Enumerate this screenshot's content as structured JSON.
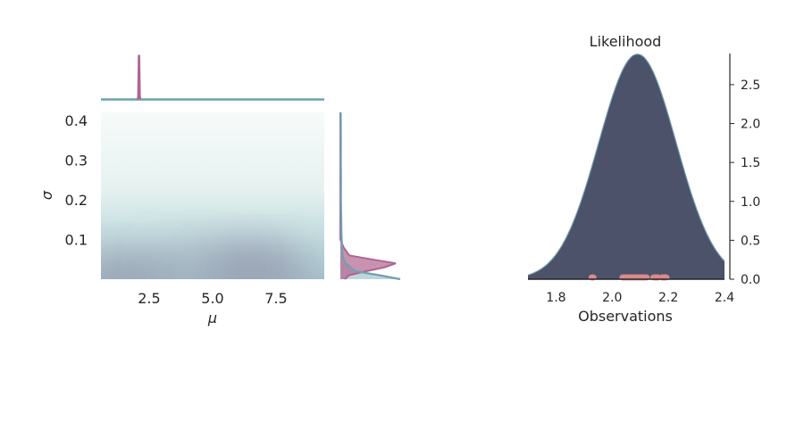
{
  "colors": {
    "background": "#ffffff",
    "text": "#262626",
    "prior_color": "#b0648f",
    "posterior_color": "#6ea2b0",
    "likelihood_fill": "#4b5269",
    "likelihood_edge": "#6e98a8",
    "observation_color": "#d98b8b",
    "axis_color": "#262626"
  },
  "chart_data": [
    {
      "type": "heatmap",
      "panel": "joint density with marginals",
      "xlabel": "μ",
      "ylabel": "σ",
      "xlim": [
        0.6,
        9.4
      ],
      "ylim": [
        0.0,
        0.42
      ],
      "xticks": [
        2.5,
        5.0,
        7.5
      ],
      "xtick_labels": [
        "2.5",
        "5.0",
        "7.5"
      ],
      "yticks": [
        0.1,
        0.2,
        0.3,
        0.4
      ],
      "ytick_labels": [
        "0.1",
        "0.2",
        "0.3",
        "0.4"
      ],
      "grid": false,
      "density_blobs": [
        {
          "mu": 1.5,
          "sigma": 0.0,
          "weight": 0.55
        },
        {
          "mu": 6.8,
          "sigma": 0.02,
          "weight": 0.65
        },
        {
          "mu": 4.5,
          "sigma": 0.03,
          "weight": 0.3
        }
      ],
      "prior_point": {
        "mu": 2.1,
        "sigma": 0.08
      },
      "top_marginal": {
        "prior_spike_mu": 2.1,
        "posterior_baseline": "flat"
      },
      "right_marginal": {
        "sigma": [
          0.0,
          0.01,
          0.02,
          0.03,
          0.04,
          0.05,
          0.06,
          0.08,
          0.1,
          0.12,
          0.15,
          0.2,
          0.25,
          0.3,
          0.35,
          0.42
        ],
        "posterior_density": [
          5.4,
          3.5,
          1.4,
          0.9,
          0.5,
          0.3,
          0.2,
          0.15,
          0.12,
          0.1,
          0.08,
          0.05,
          0.06,
          0.04,
          0.05,
          0.03
        ],
        "prior_density": [
          0.4,
          0.8,
          2.3,
          4.0,
          5.0,
          2.8,
          0.8,
          0.3,
          0.0,
          0.0,
          0.0,
          0.0,
          0.0,
          0.0,
          0.0,
          0.0
        ]
      }
    },
    {
      "type": "area",
      "title": "Likelihood",
      "xlabel": "Observations",
      "ylabel": "",
      "xlim": [
        1.7,
        2.4
      ],
      "ylim": [
        0.0,
        2.9
      ],
      "xticks": [
        1.8,
        2.0,
        2.2,
        2.4
      ],
      "xtick_labels": [
        "1.8",
        "2.0",
        "2.2",
        "2.4"
      ],
      "yticks": [
        0.0,
        0.5,
        1.0,
        1.5,
        2.0,
        2.5
      ],
      "ytick_labels": [
        "0.0",
        "0.5",
        "1.0",
        "1.5",
        "2.0",
        "2.5"
      ],
      "y_axis_side": "right",
      "grid": false,
      "density": {
        "mean": 2.09,
        "sd": 0.138
      },
      "observations": [
        1.93,
        2.04,
        2.05,
        2.06,
        2.07,
        2.08,
        2.09,
        2.1,
        2.11,
        2.12,
        2.15,
        2.16,
        2.18,
        2.19
      ]
    }
  ]
}
